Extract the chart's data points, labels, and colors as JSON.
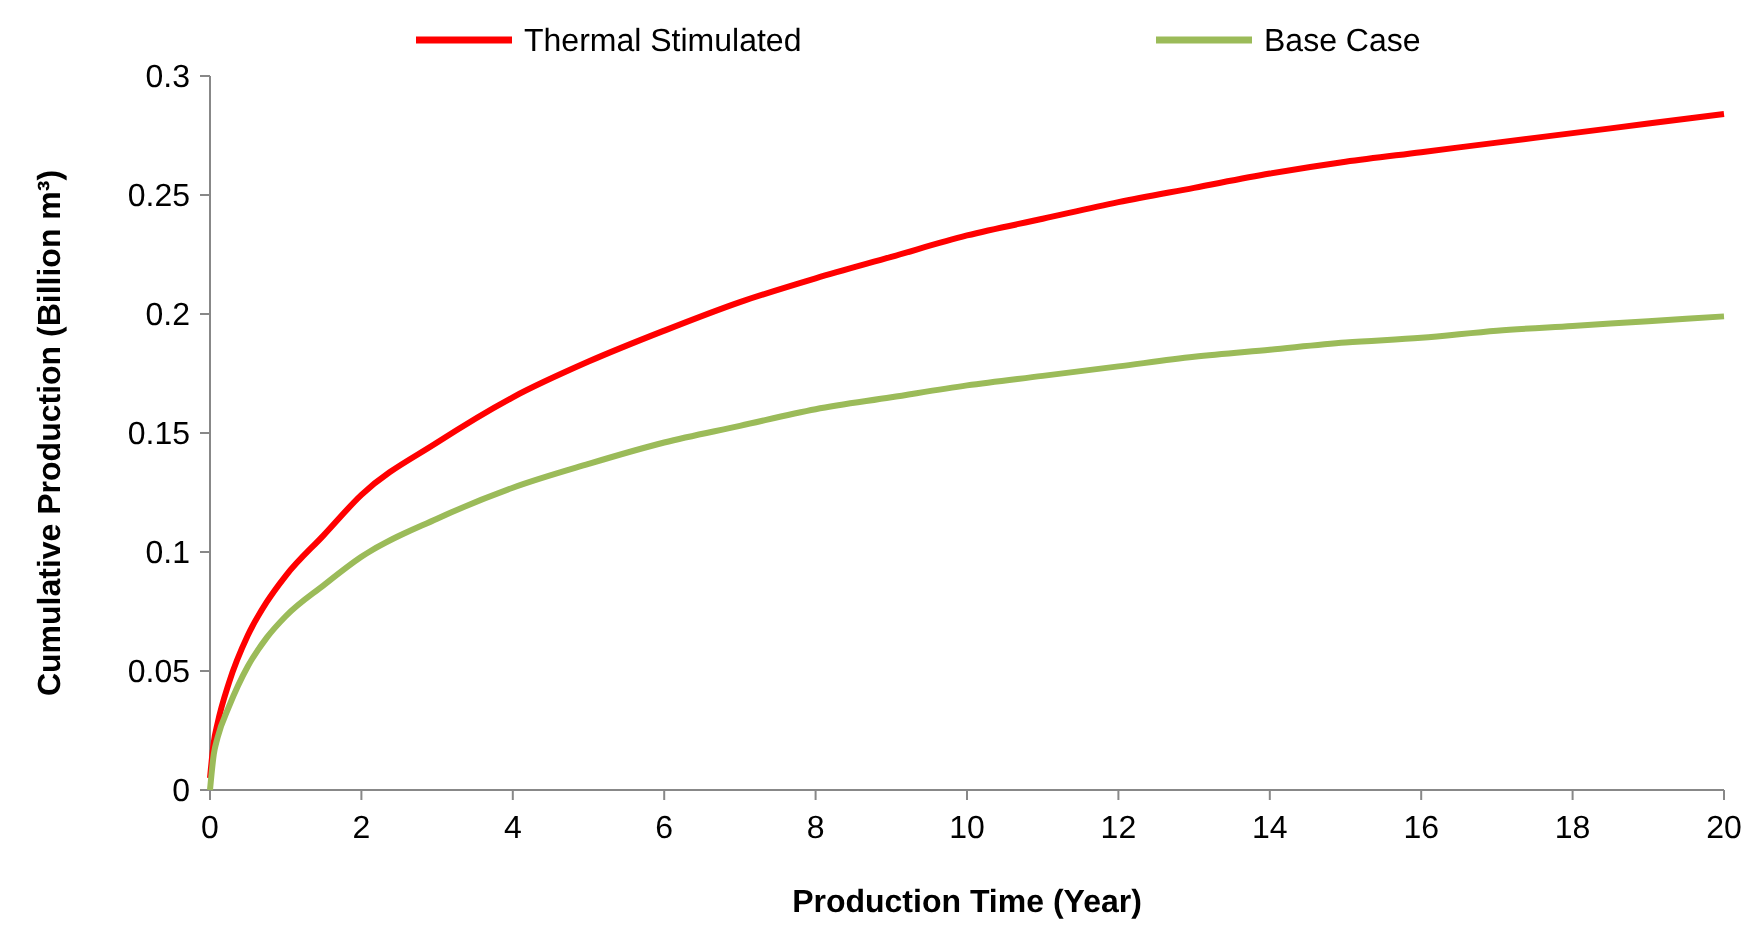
{
  "chart_data": {
    "type": "line",
    "xlabel": "Production Time (Year)",
    "ylabel": "Cumulative Production (Billion m³)",
    "xlim": [
      0,
      20
    ],
    "ylim": [
      0,
      0.3
    ],
    "xticks": [
      0,
      2,
      4,
      6,
      8,
      10,
      12,
      14,
      16,
      18,
      20
    ],
    "yticks": [
      0,
      0.05,
      0.1,
      0.15,
      0.2,
      0.25,
      0.3
    ],
    "legend": "top",
    "marker": "none",
    "line_style": "solid",
    "grid": false,
    "series": [
      {
        "name": "Thermal Stimulated",
        "color": "#ff0000",
        "x": [
          0,
          0.05,
          0.1,
          0.25,
          0.5,
          0.75,
          1,
          1.5,
          2,
          3,
          4,
          5,
          6,
          7,
          8,
          9,
          10,
          11,
          12,
          13,
          14,
          15,
          16,
          17,
          18,
          19,
          20
        ],
        "values": [
          0.005,
          0.02,
          0.028,
          0.045,
          0.065,
          0.079,
          0.09,
          0.107,
          0.124,
          0.146,
          0.165,
          0.18,
          0.193,
          0.205,
          0.215,
          0.224,
          0.233,
          0.24,
          0.247,
          0.253,
          0.259,
          0.264,
          0.268,
          0.272,
          0.276,
          0.28,
          0.284
        ]
      },
      {
        "name": "Base Case",
        "color": "#9bbb59",
        "x": [
          0,
          0.05,
          0.1,
          0.25,
          0.5,
          0.75,
          1,
          1.5,
          2,
          3,
          4,
          5,
          6,
          7,
          8,
          9,
          10,
          11,
          12,
          13,
          14,
          15,
          16,
          17,
          18,
          19,
          20
        ],
        "values": [
          0,
          0.015,
          0.022,
          0.035,
          0.052,
          0.064,
          0.073,
          0.086,
          0.098,
          0.114,
          0.127,
          0.137,
          0.146,
          0.153,
          0.16,
          0.165,
          0.17,
          0.174,
          0.178,
          0.182,
          0.185,
          0.188,
          0.19,
          0.193,
          0.195,
          0.197,
          0.199
        ]
      }
    ]
  }
}
